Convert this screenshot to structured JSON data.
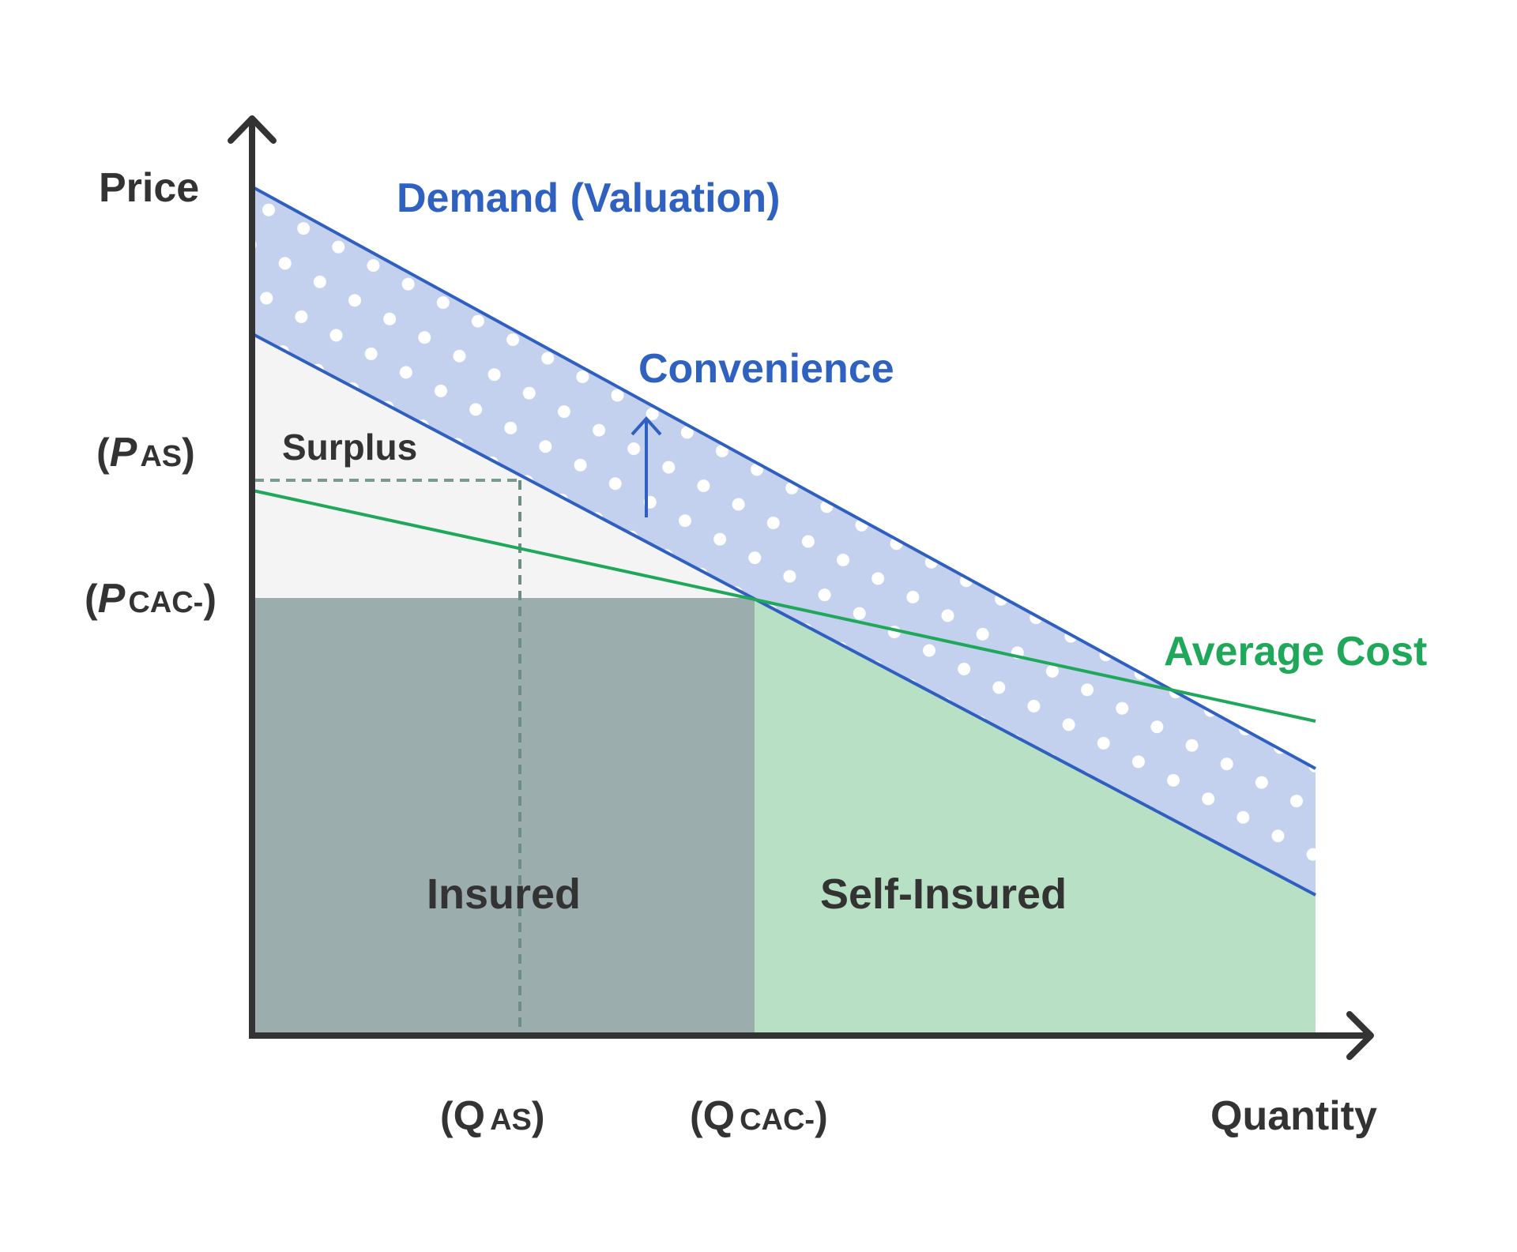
{
  "axes": {
    "y_label": "Price",
    "x_label": "Quantity"
  },
  "curves": {
    "demand_label": "Demand (Valuation)",
    "convenience_label": "Convenience",
    "average_cost_label": "Average Cost"
  },
  "regions": {
    "surplus": "Surplus",
    "insured": "Insured",
    "self_insured": "Self-Insured"
  },
  "ticks": {
    "p_as": {
      "open": "(",
      "main": "P",
      "sub": "AS",
      "close": ")"
    },
    "p_cac": {
      "open": "(",
      "main": "P",
      "sub": "CAC-",
      "close": ")"
    },
    "q_as": {
      "open": "(",
      "main": "Q",
      "sub": "AS",
      "close": ")"
    },
    "q_cac": {
      "open": "(",
      "main": "Q",
      "sub": "CAC-",
      "close": ")"
    }
  },
  "colors": {
    "axis": "#333333",
    "demand_line": "#2f5fc0",
    "band_fill": "#c3d1ee",
    "average_cost": "#1fa85a",
    "insured_fill": "#9cadad",
    "self_insured_fill": "#b8e0c5",
    "surplus_fill": "#f4f4f4",
    "dashed": "#7a9a90"
  }
}
